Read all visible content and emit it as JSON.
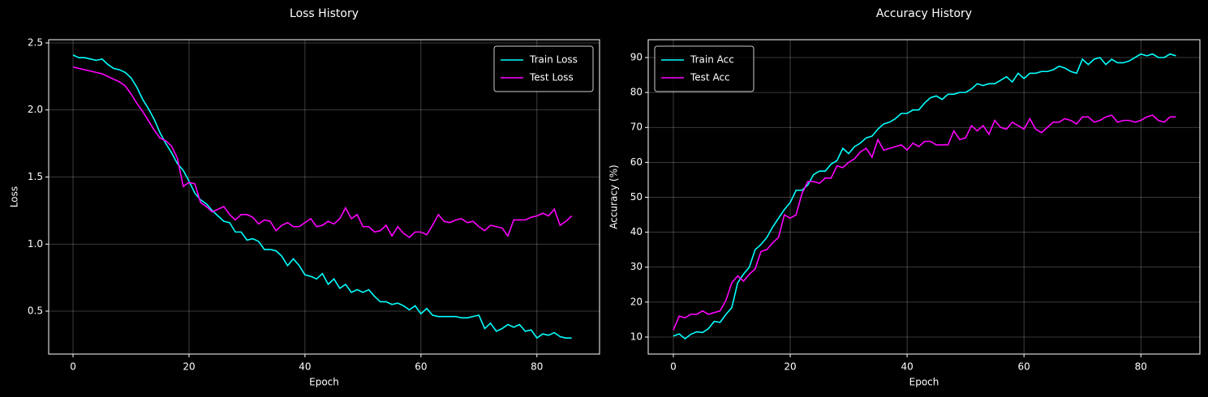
{
  "chart_data": [
    {
      "type": "line",
      "title": "Loss History",
      "x_label": "Epoch",
      "y_label": "Loss",
      "x": [
        0,
        1,
        2,
        3,
        4,
        5,
        6,
        7,
        8,
        9,
        10,
        11,
        12,
        13,
        14,
        15,
        16,
        17,
        18,
        19,
        20,
        21,
        22,
        23,
        24,
        25,
        26,
        27,
        28,
        29,
        30,
        31,
        32,
        33,
        34,
        35,
        36,
        37,
        38,
        39,
        40,
        41,
        42,
        43,
        44,
        45,
        46,
        47,
        48,
        49,
        50,
        51,
        52,
        53,
        54,
        55,
        56,
        57,
        58,
        59,
        60,
        61,
        62,
        63,
        64,
        65,
        66,
        67,
        68,
        69,
        70,
        71,
        72,
        73,
        74,
        75,
        76,
        77,
        78,
        79,
        80,
        81,
        82,
        83,
        84,
        85,
        86
      ],
      "series": [
        {
          "name": "Train Loss",
          "color": "#00ffff",
          "values": [
            2.41,
            2.39,
            2.39,
            2.38,
            2.37,
            2.38,
            2.34,
            2.31,
            2.3,
            2.28,
            2.24,
            2.17,
            2.08,
            2.01,
            1.93,
            1.83,
            1.75,
            1.68,
            1.6,
            1.55,
            1.47,
            1.38,
            1.33,
            1.3,
            1.25,
            1.21,
            1.17,
            1.16,
            1.09,
            1.09,
            1.03,
            1.04,
            1.02,
            0.96,
            0.96,
            0.95,
            0.91,
            0.84,
            0.89,
            0.84,
            0.77,
            0.76,
            0.74,
            0.78,
            0.7,
            0.74,
            0.67,
            0.7,
            0.64,
            0.66,
            0.64,
            0.66,
            0.61,
            0.57,
            0.57,
            0.55,
            0.56,
            0.54,
            0.51,
            0.54,
            0.48,
            0.52,
            0.47,
            0.46,
            0.46,
            0.46,
            0.46,
            0.45,
            0.45,
            0.46,
            0.47,
            0.37,
            0.41,
            0.35,
            0.37,
            0.4,
            0.38,
            0.4,
            0.35,
            0.36,
            0.3,
            0.33,
            0.32,
            0.34,
            0.31,
            0.3,
            0.3
          ]
        },
        {
          "name": "Test Loss",
          "color": "#ff00ff",
          "values": [
            2.32,
            2.31,
            2.3,
            2.29,
            2.28,
            2.27,
            2.25,
            2.23,
            2.21,
            2.18,
            2.12,
            2.05,
            1.99,
            1.92,
            1.85,
            1.79,
            1.77,
            1.73,
            1.64,
            1.43,
            1.46,
            1.45,
            1.31,
            1.28,
            1.24,
            1.26,
            1.28,
            1.22,
            1.18,
            1.22,
            1.22,
            1.2,
            1.15,
            1.18,
            1.17,
            1.1,
            1.14,
            1.16,
            1.13,
            1.13,
            1.16,
            1.19,
            1.13,
            1.14,
            1.17,
            1.15,
            1.19,
            1.27,
            1.19,
            1.22,
            1.13,
            1.13,
            1.09,
            1.1,
            1.14,
            1.06,
            1.13,
            1.08,
            1.05,
            1.09,
            1.09,
            1.07,
            1.14,
            1.22,
            1.17,
            1.16,
            1.18,
            1.19,
            1.16,
            1.17,
            1.13,
            1.1,
            1.14,
            1.13,
            1.12,
            1.06,
            1.18,
            1.18,
            1.18,
            1.2,
            1.21,
            1.23,
            1.21,
            1.26,
            1.14,
            1.17,
            1.21
          ]
        }
      ],
      "xlim": [
        -4.2,
        90.8
      ],
      "xticks": [
        0,
        20,
        40,
        60,
        80
      ],
      "ylim": [
        0.18,
        2.524
      ],
      "yticks": [
        0.5,
        {
          "value": 1,
          "label": "1.0"
        },
        1.5,
        {
          "value": 2,
          "label": "2.0"
        },
        2.5
      ],
      "grid": true,
      "legend": "upper right"
    },
    {
      "type": "line",
      "title": "Accuracy History",
      "x_label": "Epoch",
      "y_label": "Accuracy (%)",
      "x": [
        0,
        1,
        2,
        3,
        4,
        5,
        6,
        7,
        8,
        9,
        10,
        11,
        12,
        13,
        14,
        15,
        16,
        17,
        18,
        19,
        20,
        21,
        22,
        23,
        24,
        25,
        26,
        27,
        28,
        29,
        30,
        31,
        32,
        33,
        34,
        35,
        36,
        37,
        38,
        39,
        40,
        41,
        42,
        43,
        44,
        45,
        46,
        47,
        48,
        49,
        50,
        51,
        52,
        53,
        54,
        55,
        56,
        57,
        58,
        59,
        60,
        61,
        62,
        63,
        64,
        65,
        66,
        67,
        68,
        69,
        70,
        71,
        72,
        73,
        74,
        75,
        76,
        77,
        78,
        79,
        80,
        81,
        82,
        83,
        84,
        85,
        86
      ],
      "series": [
        {
          "name": "Train Acc",
          "color": "#00ffff",
          "values": [
            10.3,
            10.9,
            9.5,
            10.8,
            11.5,
            11.3,
            12.4,
            14.5,
            14.2,
            16.5,
            18.4,
            25.5,
            28.0,
            30.0,
            35.0,
            36.5,
            38.5,
            41.5,
            44.0,
            46.5,
            48.5,
            52.0,
            52.0,
            53.5,
            56.5,
            57.5,
            57.5,
            59.5,
            60.5,
            64.0,
            62.5,
            64.5,
            65.5,
            67.0,
            67.5,
            69.5,
            71.0,
            71.5,
            72.5,
            74.0,
            74.0,
            75.0,
            75.0,
            77.0,
            78.5,
            79.0,
            78.0,
            79.5,
            79.5,
            80.0,
            80.0,
            81.0,
            82.5,
            82.0,
            82.5,
            82.5,
            83.5,
            84.5,
            83.0,
            85.5,
            84.0,
            85.5,
            85.5,
            86.0,
            86.0,
            86.5,
            87.5,
            87.0,
            86.0,
            85.5,
            89.5,
            88.0,
            89.5,
            90.0,
            88.0,
            89.5,
            88.5,
            88.5,
            89.0,
            90.0,
            91.0,
            90.5,
            91.0,
            90.0,
            90.0,
            91.0,
            90.5
          ]
        },
        {
          "name": "Test Acc",
          "color": "#ff00ff",
          "values": [
            12.0,
            16.0,
            15.5,
            16.5,
            16.5,
            17.5,
            16.5,
            17.0,
            17.5,
            20.5,
            25.5,
            27.5,
            26.0,
            28.0,
            29.5,
            34.5,
            35.0,
            37.0,
            38.5,
            45.0,
            44.0,
            45.0,
            51.0,
            54.5,
            54.5,
            54.0,
            55.5,
            55.5,
            59.0,
            58.5,
            60.0,
            61.0,
            63.0,
            64.0,
            61.5,
            66.5,
            63.5,
            64.0,
            64.5,
            65.0,
            63.5,
            65.5,
            64.5,
            66.0,
            66.0,
            65.0,
            65.0,
            65.0,
            69.0,
            66.5,
            67.0,
            70.5,
            69.0,
            70.5,
            68.0,
            72.0,
            70.0,
            69.5,
            71.5,
            70.5,
            69.5,
            72.5,
            69.5,
            68.5,
            70.0,
            71.5,
            71.5,
            72.5,
            72.0,
            71.0,
            73.0,
            73.0,
            71.5,
            72.0,
            73.0,
            73.5,
            71.5,
            72.0,
            72.0,
            71.5,
            72.0,
            73.0,
            73.5,
            72.0,
            71.5,
            73.0,
            73.0
          ]
        }
      ],
      "xlim": [
        -4.3,
        90.1
      ],
      "xticks": [
        0,
        20,
        40,
        60,
        80
      ],
      "ylim": [
        5.13,
        95.1
      ],
      "yticks": [
        10,
        20,
        30,
        40,
        50,
        60,
        70,
        80,
        90
      ],
      "grid": true,
      "legend": "upper left"
    }
  ]
}
